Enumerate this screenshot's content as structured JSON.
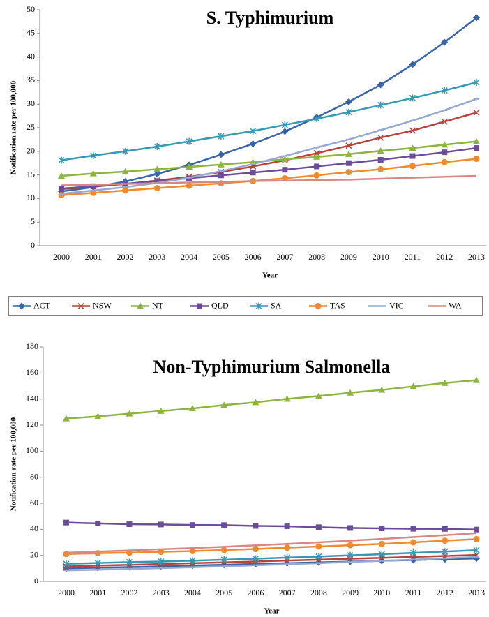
{
  "chart_data": [
    {
      "type": "line",
      "title": "S. Typhimurium",
      "x_label": "Year",
      "y_label": "Notification rate per 100,000",
      "categories": [
        "2000",
        "2001",
        "2002",
        "2003",
        "2004",
        "2005",
        "2006",
        "2007",
        "2008",
        "2009",
        "2010",
        "2011",
        "2012",
        "2013"
      ],
      "ylim": [
        0,
        50
      ],
      "yticks": [
        0,
        5,
        10,
        15,
        20,
        25,
        30,
        35,
        40,
        45,
        50
      ],
      "series": [
        {
          "name": "ACT",
          "color": "#3a64a8",
          "marker": "diamond",
          "values": [
            11.5,
            12.4,
            13.6,
            15.2,
            17.1,
            19.3,
            21.6,
            24.2,
            27.2,
            30.5,
            34.1,
            38.4,
            43.1,
            48.3
          ]
        },
        {
          "name": "NSW",
          "color": "#b8413a",
          "marker": "x",
          "values": [
            12.0,
            12.5,
            13.1,
            13.8,
            14.6,
            15.6,
            16.8,
            18.1,
            19.6,
            21.2,
            22.9,
            24.4,
            26.3,
            28.2
          ]
        },
        {
          "name": "NT",
          "color": "#8db43f",
          "marker": "triangle",
          "values": [
            14.8,
            15.3,
            15.7,
            16.2,
            16.7,
            17.2,
            17.7,
            18.3,
            18.8,
            19.4,
            20.1,
            20.7,
            21.4,
            22.1
          ]
        },
        {
          "name": "QLD",
          "color": "#6b4c9a",
          "marker": "square",
          "values": [
            12.1,
            12.6,
            13.1,
            13.7,
            14.3,
            14.9,
            15.5,
            16.1,
            16.8,
            17.5,
            18.2,
            19.0,
            19.8,
            20.7
          ]
        },
        {
          "name": "SA",
          "color": "#3399b5",
          "marker": "asterisk",
          "values": [
            18.1,
            19.1,
            20.0,
            21.0,
            22.1,
            23.2,
            24.3,
            25.6,
            26.9,
            28.3,
            29.8,
            31.3,
            32.9,
            34.6
          ]
        },
        {
          "name": "TAS",
          "color": "#ef8a2e",
          "marker": "circle",
          "values": [
            10.7,
            11.2,
            11.7,
            12.2,
            12.7,
            13.2,
            13.7,
            14.3,
            14.9,
            15.6,
            16.2,
            16.9,
            17.7,
            18.4
          ]
        },
        {
          "name": "VIC",
          "color": "#93a9d2",
          "marker": "dash",
          "values": [
            11.0,
            11.7,
            12.4,
            13.3,
            14.4,
            15.8,
            17.3,
            19.0,
            20.8,
            22.5,
            24.5,
            26.5,
            28.7,
            31.1
          ]
        },
        {
          "name": "WA",
          "color": "#d98785",
          "marker": "none",
          "values": [
            12.8,
            12.9,
            13.1,
            13.2,
            13.4,
            13.5,
            13.7,
            13.8,
            13.9,
            14.0,
            14.2,
            14.4,
            14.6,
            14.8
          ]
        }
      ]
    },
    {
      "type": "line",
      "title": "Non-Typhimurium Salmonella",
      "x_label": "Year",
      "y_label": "Notification rate per 100,000",
      "categories": [
        "2000",
        "2001",
        "2002",
        "2003",
        "2004",
        "2005",
        "2006",
        "2007",
        "2008",
        "2009",
        "2010",
        "2011",
        "2012",
        "2013"
      ],
      "ylim": [
        0,
        180
      ],
      "yticks": [
        0,
        20,
        40,
        60,
        80,
        100,
        120,
        140,
        160,
        180
      ],
      "series": [
        {
          "name": "ACT",
          "color": "#3a64a8",
          "marker": "diamond",
          "values": [
            10,
            10.5,
            11,
            11.6,
            12.2,
            12.8,
            13.4,
            14,
            14.6,
            15.2,
            15.8,
            16.4,
            17,
            17.6
          ]
        },
        {
          "name": "NSW",
          "color": "#b8413a",
          "marker": "x",
          "values": [
            11.5,
            12.1,
            12.7,
            13.3,
            14,
            14.6,
            15.3,
            16,
            16.7,
            17.4,
            18.1,
            18.8,
            19.5,
            20.3
          ]
        },
        {
          "name": "NT",
          "color": "#8db43f",
          "marker": "triangle",
          "values": [
            125,
            126.7,
            128.8,
            130.8,
            132.8,
            135.4,
            137.5,
            140.1,
            142.3,
            144.8,
            147,
            149.7,
            152.3,
            154.5
          ]
        },
        {
          "name": "QLD",
          "color": "#6b4c9a",
          "marker": "square",
          "values": [
            45.2,
            44.5,
            43.9,
            43.7,
            43.3,
            43.2,
            42.6,
            42.3,
            41.6,
            41,
            40.7,
            40.4,
            40.3,
            39.8
          ]
        },
        {
          "name": "SA",
          "color": "#3399b5",
          "marker": "asterisk",
          "values": [
            13.5,
            14.1,
            14.8,
            15.3,
            15.9,
            16.7,
            17.4,
            18.3,
            19.1,
            20,
            20.9,
            21.9,
            22.9,
            24
          ]
        },
        {
          "name": "TAS",
          "color": "#ef8a2e",
          "marker": "circle",
          "values": [
            21,
            21.6,
            22.1,
            22.7,
            23.3,
            24.1,
            24.9,
            25.9,
            26.8,
            27.8,
            28.8,
            30,
            31.3,
            32.5
          ]
        },
        {
          "name": "VIC",
          "color": "#93a9d2",
          "marker": "dash",
          "values": [
            8.5,
            9,
            9.6,
            10.2,
            10.9,
            11.6,
            12.4,
            13.2,
            14,
            14.9,
            15.8,
            16.7,
            17.7,
            18.8
          ]
        },
        {
          "name": "WA",
          "color": "#d98785",
          "marker": "none",
          "values": [
            22,
            22.9,
            23.8,
            24.7,
            25.6,
            26.6,
            27.7,
            28.8,
            30,
            31.3,
            32.6,
            34,
            35.5,
            37
          ]
        }
      ]
    }
  ]
}
